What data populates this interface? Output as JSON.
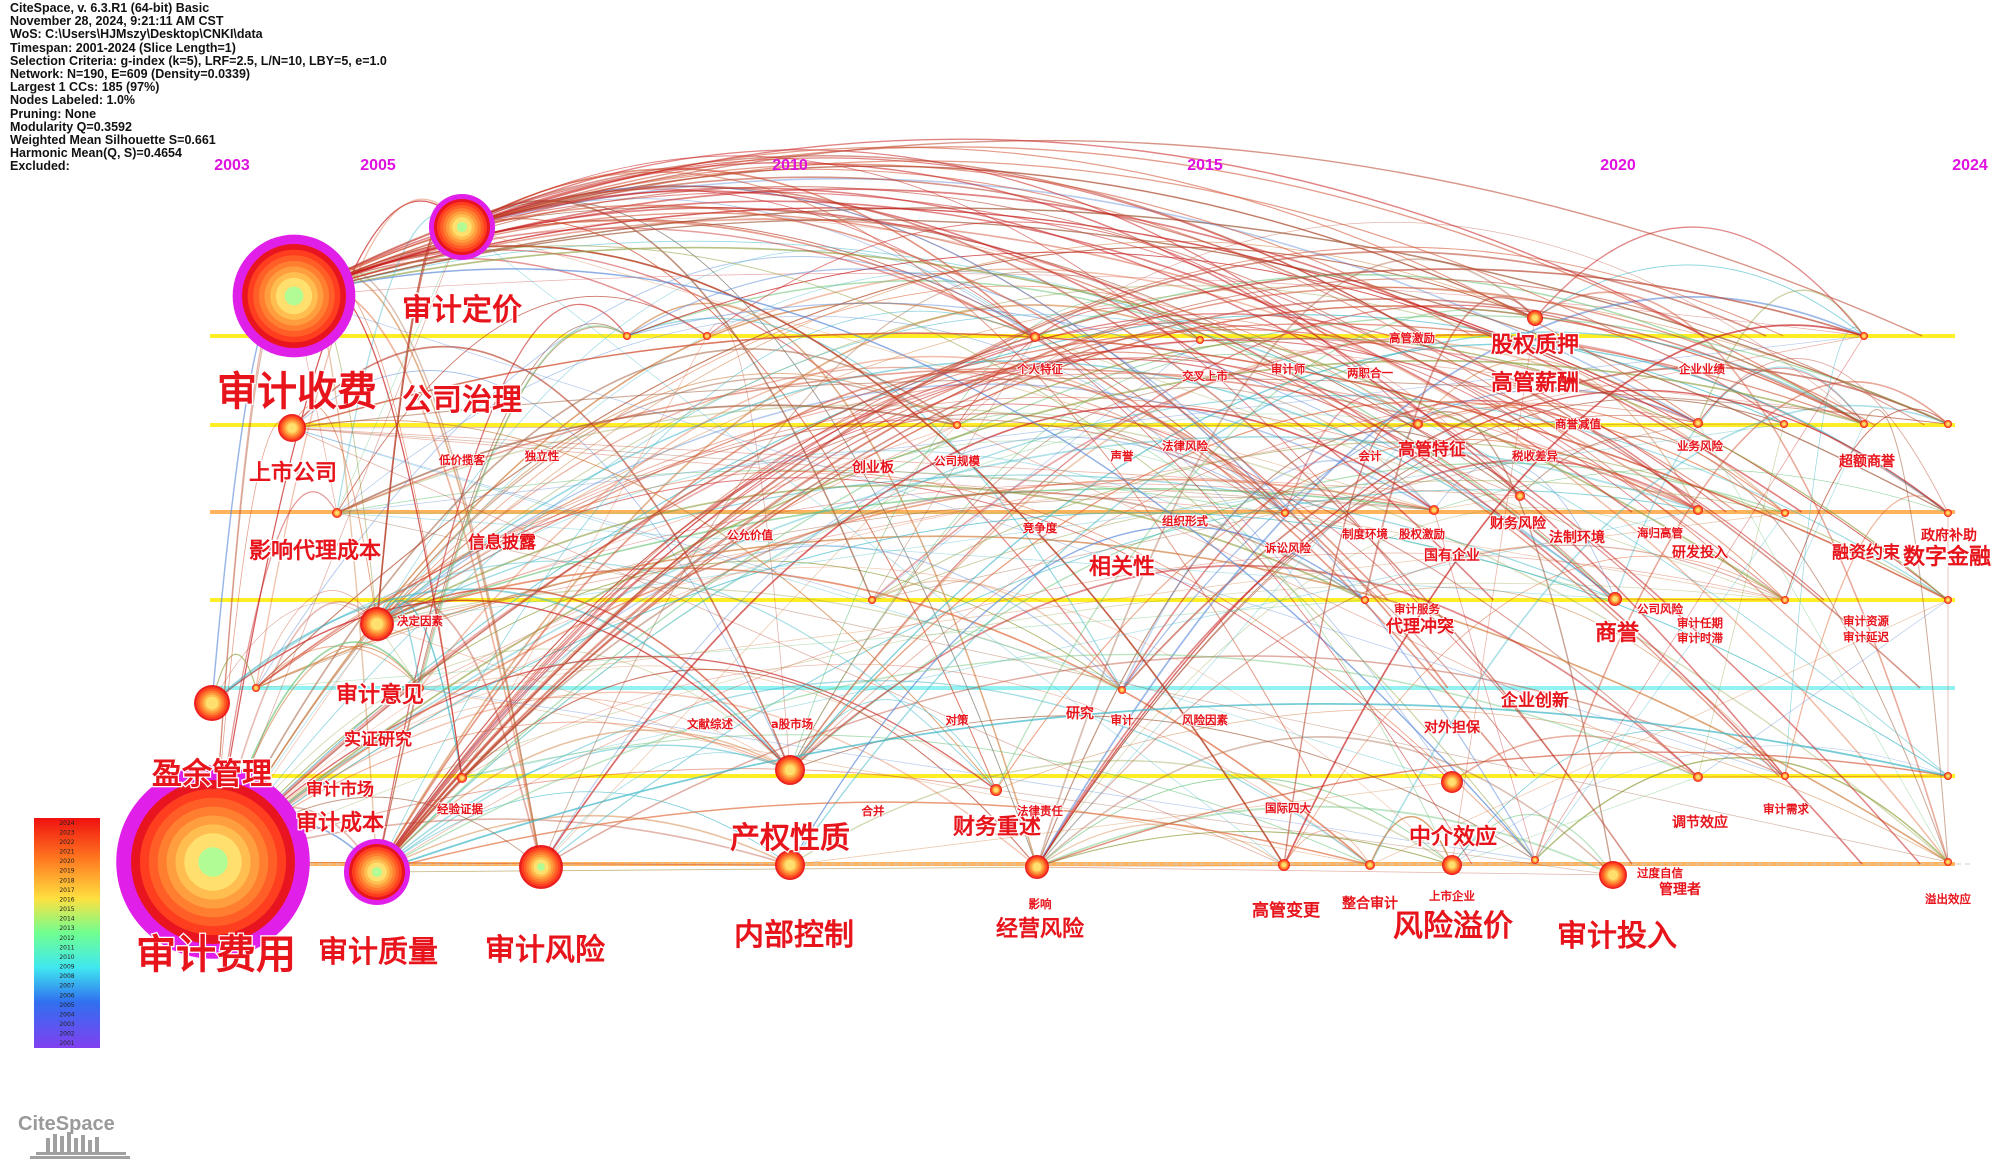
{
  "header_info": [
    "CiteSpace, v. 6.3.R1 (64-bit) Basic",
    "November 28, 2024, 9:21:11 AM CST",
    "WoS: C:\\Users\\HJMszy\\Desktop\\CNKI\\data",
    "Timespan: 2001-2024 (Slice Length=1)",
    "Selection Criteria: g-index (k=5), LRF=2.5, L/N=10, LBY=5, e=1.0",
    "Network: N=190, E=609 (Density=0.0339)",
    "Largest 1 CCs: 185 (97%)",
    "Nodes Labeled: 1.0%",
    "Pruning: None",
    "Modularity Q=0.3592",
    "Weighted Mean Silhouette S=0.661",
    "Harmonic Mean(Q, S)=0.4654",
    "Excluded:"
  ],
  "year_axis": [
    "2003",
    "2005",
    "2010",
    "2015",
    "2020",
    "2024"
  ],
  "legend_years": [
    "2024",
    "2023",
    "2022",
    "2021",
    "2020",
    "2019",
    "2018",
    "2017",
    "2016",
    "2015",
    "2014",
    "2013",
    "2012",
    "2011",
    "2010",
    "2009",
    "2008",
    "2007",
    "2006",
    "2005",
    "2004",
    "2003",
    "2002",
    "2001"
  ],
  "logo_text": "CiteSpace",
  "colors": {
    "axis_year": "#e010e0",
    "label": "#e8141c",
    "halo": "#e020e8",
    "lane_yellow": "#ffea00",
    "lane_orange": "#ffa640",
    "lane_cyan": "#7ff0f0"
  },
  "labels": [
    {
      "text": "审计定价",
      "size": "xl"
    },
    {
      "text": "审计收费",
      "size": "xxl"
    },
    {
      "text": "公司治理",
      "size": "xl"
    },
    {
      "text": "上市公司",
      "size": "l"
    },
    {
      "text": "影响代理成本",
      "size": "l"
    },
    {
      "text": "信息披露",
      "size": "m"
    },
    {
      "text": "审计意见",
      "size": "l"
    },
    {
      "text": "实证研究",
      "size": "m"
    },
    {
      "text": "盈余管理",
      "size": "xl"
    },
    {
      "text": "审计市场",
      "size": "m"
    },
    {
      "text": "审计成本",
      "size": "l"
    },
    {
      "text": "审计费用",
      "size": "xxl"
    },
    {
      "text": "审计质量",
      "size": "xl"
    },
    {
      "text": "审计风险",
      "size": "xl"
    },
    {
      "text": "产权性质",
      "size": "xl"
    },
    {
      "text": "内部控制",
      "size": "xl"
    },
    {
      "text": "财务重述",
      "size": "l"
    },
    {
      "text": "经营风险",
      "size": "l"
    },
    {
      "text": "相关性",
      "size": "l"
    },
    {
      "text": "中介效应",
      "size": "l"
    },
    {
      "text": "风险溢价",
      "size": "xl"
    },
    {
      "text": "审计投入",
      "size": "xl"
    },
    {
      "text": "商誉",
      "size": "l"
    },
    {
      "text": "企业创新",
      "size": "m"
    },
    {
      "text": "股权质押",
      "size": "l"
    },
    {
      "text": "高管薪酬",
      "size": "l"
    },
    {
      "text": "高管特征",
      "size": "m"
    },
    {
      "text": "数字金融",
      "size": "l"
    },
    {
      "text": "融资约束",
      "size": "m"
    },
    {
      "text": "政府补助",
      "size": "s"
    },
    {
      "text": "超额商誉",
      "size": "s"
    },
    {
      "text": "代理冲突",
      "size": "m"
    },
    {
      "text": "国有企业",
      "size": "s"
    },
    {
      "text": "法制环境",
      "size": "s"
    },
    {
      "text": "财务风险",
      "size": "s"
    },
    {
      "text": "研发投入",
      "size": "s"
    },
    {
      "text": "对外担保",
      "size": "s"
    },
    {
      "text": "高管变更",
      "size": "m"
    },
    {
      "text": "整合审计",
      "size": "s"
    },
    {
      "text": "调节效应",
      "size": "s"
    },
    {
      "text": "管理者",
      "size": "s"
    },
    {
      "text": "创业板",
      "size": "s"
    },
    {
      "text": "a股市场",
      "size": "xs"
    },
    {
      "text": "文献综述",
      "size": "xs"
    },
    {
      "text": "合并",
      "size": "xs"
    },
    {
      "text": "法律责任",
      "size": "xs"
    },
    {
      "text": "影响",
      "size": "xs"
    },
    {
      "text": "研究",
      "size": "s"
    },
    {
      "text": "审计",
      "size": "xs"
    },
    {
      "text": "风险因素",
      "size": "xs"
    },
    {
      "text": "对策",
      "size": "xs"
    },
    {
      "text": "决定因素",
      "size": "xs"
    },
    {
      "text": "低价揽客",
      "size": "xs"
    },
    {
      "text": "独立性",
      "size": "xs"
    },
    {
      "text": "经验证据",
      "size": "xs"
    },
    {
      "text": "公允价值",
      "size": "xs"
    },
    {
      "text": "公司规模",
      "size": "xs"
    },
    {
      "text": "竞争度",
      "size": "xs"
    },
    {
      "text": "组织形式",
      "size": "xs"
    },
    {
      "text": "声誉",
      "size": "xs"
    },
    {
      "text": "法律风险",
      "size": "xs"
    },
    {
      "text": "诉讼风险",
      "size": "xs"
    },
    {
      "text": "个人特征",
      "size": "xs"
    },
    {
      "text": "交叉上市",
      "size": "xs"
    },
    {
      "text": "审计师",
      "size": "xs"
    },
    {
      "text": "两职合一",
      "size": "xs"
    },
    {
      "text": "高管激励",
      "size": "xs"
    },
    {
      "text": "企业业绩",
      "size": "xs"
    },
    {
      "text": "商誉减值",
      "size": "xs"
    },
    {
      "text": "业务风险",
      "size": "xs"
    },
    {
      "text": "会计",
      "size": "xs"
    },
    {
      "text": "税收差异",
      "size": "xs"
    },
    {
      "text": "制度环境",
      "size": "xs"
    },
    {
      "text": "股权激励",
      "size": "xs"
    },
    {
      "text": "海归高管",
      "size": "xs"
    },
    {
      "text": "审计服务",
      "size": "xs"
    },
    {
      "text": "公司风险",
      "size": "xs"
    },
    {
      "text": "审计任期",
      "size": "xs"
    },
    {
      "text": "审计时滞",
      "size": "xs"
    },
    {
      "text": "审计资源",
      "size": "xs"
    },
    {
      "text": "审计延迟",
      "size": "xs"
    },
    {
      "text": "国际四大",
      "size": "xs"
    },
    {
      "text": "上市企业",
      "size": "xs"
    },
    {
      "text": "过度自信",
      "size": "xs"
    },
    {
      "text": "审计需求",
      "size": "xs"
    },
    {
      "text": "溢出效应",
      "size": "xs"
    }
  ]
}
